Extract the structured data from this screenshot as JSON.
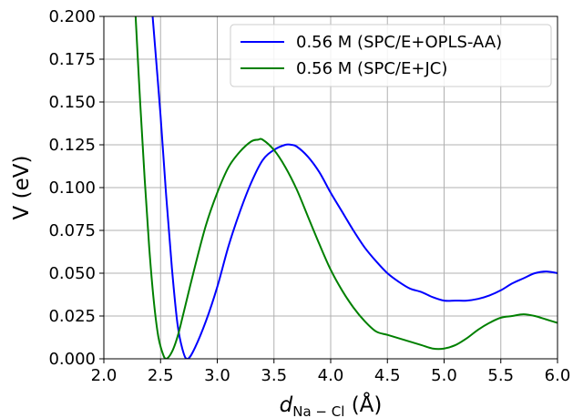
{
  "chart_data": {
    "type": "line",
    "xlabel_main": "d",
    "xlabel_sub": "Na − Cl",
    "xlabel_unit": " (Å)",
    "ylabel": "V (eV)",
    "xlim": [
      2.0,
      6.0
    ],
    "ylim": [
      0.0,
      0.2
    ],
    "xticks": [
      "2.0",
      "2.5",
      "3.0",
      "3.5",
      "4.0",
      "4.5",
      "5.0",
      "5.5",
      "6.0"
    ],
    "yticks": [
      "0.000",
      "0.025",
      "0.050",
      "0.075",
      "0.100",
      "0.125",
      "0.150",
      "0.175",
      "0.200"
    ],
    "grid": true,
    "legend_position": "top-right",
    "series": [
      {
        "name": "0.56 M (SPC/E+OPLS-AA)",
        "color": "#0000ff",
        "points": [
          [
            2.43,
            0.2
          ],
          [
            2.5,
            0.142
          ],
          [
            2.55,
            0.095
          ],
          [
            2.6,
            0.053
          ],
          [
            2.65,
            0.02
          ],
          [
            2.7,
            0.004
          ],
          [
            2.74,
            0.0
          ],
          [
            2.8,
            0.006
          ],
          [
            2.9,
            0.022
          ],
          [
            3.0,
            0.042
          ],
          [
            3.1,
            0.066
          ],
          [
            3.2,
            0.086
          ],
          [
            3.3,
            0.103
          ],
          [
            3.4,
            0.116
          ],
          [
            3.5,
            0.122
          ],
          [
            3.6,
            0.125
          ],
          [
            3.65,
            0.125
          ],
          [
            3.7,
            0.124
          ],
          [
            3.8,
            0.118
          ],
          [
            3.9,
            0.109
          ],
          [
            4.0,
            0.097
          ],
          [
            4.1,
            0.086
          ],
          [
            4.2,
            0.075
          ],
          [
            4.3,
            0.065
          ],
          [
            4.4,
            0.057
          ],
          [
            4.5,
            0.05
          ],
          [
            4.6,
            0.045
          ],
          [
            4.7,
            0.041
          ],
          [
            4.8,
            0.039
          ],
          [
            4.9,
            0.036
          ],
          [
            5.0,
            0.034
          ],
          [
            5.1,
            0.034
          ],
          [
            5.2,
            0.034
          ],
          [
            5.3,
            0.035
          ],
          [
            5.4,
            0.037
          ],
          [
            5.5,
            0.04
          ],
          [
            5.6,
            0.044
          ],
          [
            5.7,
            0.047
          ],
          [
            5.8,
            0.05
          ],
          [
            5.9,
            0.051
          ],
          [
            6.0,
            0.05
          ]
        ]
      },
      {
        "name": "0.56 M (SPC/E+JC)",
        "color": "#008000",
        "points": [
          [
            2.28,
            0.2
          ],
          [
            2.32,
            0.15
          ],
          [
            2.36,
            0.105
          ],
          [
            2.4,
            0.065
          ],
          [
            2.44,
            0.034
          ],
          [
            2.48,
            0.013
          ],
          [
            2.52,
            0.003
          ],
          [
            2.55,
            0.0
          ],
          [
            2.6,
            0.004
          ],
          [
            2.65,
            0.013
          ],
          [
            2.7,
            0.026
          ],
          [
            2.8,
            0.053
          ],
          [
            2.9,
            0.078
          ],
          [
            3.0,
            0.097
          ],
          [
            3.1,
            0.112
          ],
          [
            3.2,
            0.121
          ],
          [
            3.3,
            0.127
          ],
          [
            3.36,
            0.128
          ],
          [
            3.4,
            0.128
          ],
          [
            3.5,
            0.122
          ],
          [
            3.6,
            0.112
          ],
          [
            3.7,
            0.099
          ],
          [
            3.8,
            0.083
          ],
          [
            3.9,
            0.067
          ],
          [
            4.0,
            0.052
          ],
          [
            4.1,
            0.04
          ],
          [
            4.2,
            0.03
          ],
          [
            4.3,
            0.022
          ],
          [
            4.4,
            0.016
          ],
          [
            4.5,
            0.014
          ],
          [
            4.6,
            0.012
          ],
          [
            4.7,
            0.01
          ],
          [
            4.8,
            0.008
          ],
          [
            4.9,
            0.006
          ],
          [
            5.0,
            0.006
          ],
          [
            5.1,
            0.008
          ],
          [
            5.2,
            0.012
          ],
          [
            5.3,
            0.017
          ],
          [
            5.4,
            0.021
          ],
          [
            5.5,
            0.024
          ],
          [
            5.6,
            0.025
          ],
          [
            5.7,
            0.026
          ],
          [
            5.8,
            0.025
          ],
          [
            5.9,
            0.023
          ],
          [
            6.0,
            0.021
          ]
        ]
      }
    ]
  }
}
